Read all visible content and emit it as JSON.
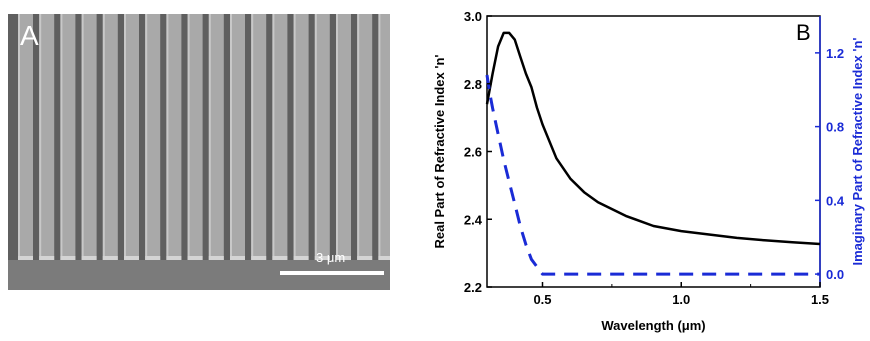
{
  "panel_a": {
    "letter": "A",
    "scale_bar_label": "3 μm"
  },
  "chart_data": {
    "type": "line",
    "panel_letter": "B",
    "xlabel": "Wavelength (μm)",
    "ylabel_left": "Real Part of Refractive Index 'n'",
    "ylabel_right": "Imaginary Part of Refractive Index 'n'",
    "xlim": [
      0.3,
      1.5
    ],
    "ylim_left": [
      2.2,
      3.0
    ],
    "ylim_right": [
      -0.07,
      1.4
    ],
    "x_ticks": [
      0.5,
      1.0,
      1.5
    ],
    "x_tick_labels": [
      "0.5",
      "1.0",
      "1.5"
    ],
    "y_left_ticks": [
      2.2,
      2.4,
      2.6,
      2.8,
      3.0
    ],
    "y_left_tick_labels": [
      "2.2",
      "2.4",
      "2.6",
      "2.8",
      "3.0"
    ],
    "y_right_ticks": [
      0.0,
      0.4,
      0.8,
      1.2
    ],
    "y_right_tick_labels": [
      "0.0",
      "0.4",
      "0.8",
      "1.2"
    ],
    "series": [
      {
        "axis": "left",
        "style": "solid",
        "color": "#000000",
        "x": [
          0.3,
          0.32,
          0.34,
          0.36,
          0.38,
          0.4,
          0.42,
          0.44,
          0.46,
          0.48,
          0.5,
          0.55,
          0.6,
          0.65,
          0.7,
          0.8,
          0.9,
          1.0,
          1.1,
          1.2,
          1.3,
          1.4,
          1.5
        ],
        "y": [
          2.74,
          2.83,
          2.91,
          2.95,
          2.95,
          2.93,
          2.88,
          2.83,
          2.79,
          2.73,
          2.68,
          2.58,
          2.52,
          2.48,
          2.45,
          2.41,
          2.38,
          2.365,
          2.355,
          2.345,
          2.338,
          2.332,
          2.327
        ]
      },
      {
        "axis": "right",
        "style": "dashed",
        "color": "#1a2bd6",
        "x": [
          0.3,
          0.31,
          0.32,
          0.34,
          0.36,
          0.38,
          0.4,
          0.42,
          0.44,
          0.46,
          0.48,
          0.5,
          0.55,
          0.6,
          0.8,
          1.0,
          1.2,
          1.5
        ],
        "y": [
          1.08,
          0.98,
          0.9,
          0.76,
          0.62,
          0.5,
          0.38,
          0.26,
          0.16,
          0.08,
          0.04,
          0.0,
          0.0,
          0.0,
          0.0,
          0.0,
          0.0,
          0.0
        ]
      }
    ]
  }
}
